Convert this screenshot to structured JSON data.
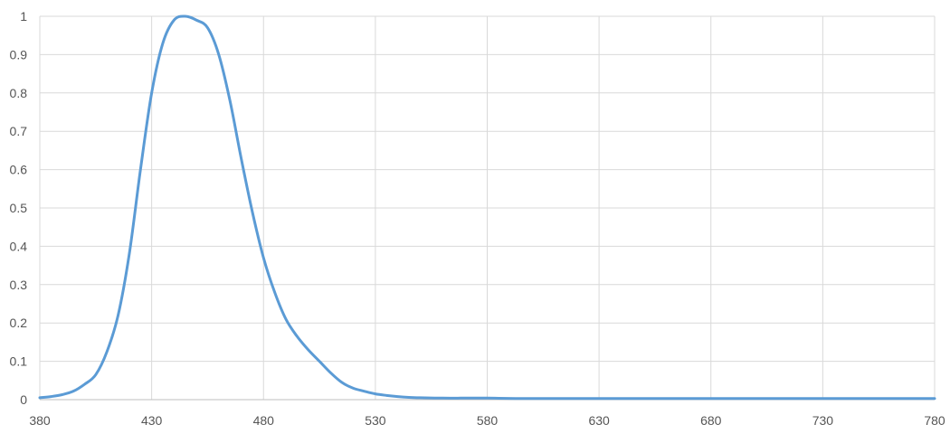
{
  "chart_data": {
    "type": "line",
    "title": "",
    "xlabel": "",
    "ylabel": "",
    "xlim": [
      380,
      780
    ],
    "ylim": [
      0,
      1
    ],
    "grid": true,
    "x_ticks": [
      380,
      430,
      480,
      530,
      580,
      630,
      680,
      730,
      780
    ],
    "y_ticks": [
      0,
      0.1,
      0.2,
      0.3,
      0.4,
      0.5,
      0.6,
      0.7,
      0.8,
      0.9,
      1
    ],
    "x_tick_labels": [
      "380",
      "430",
      "480",
      "530",
      "580",
      "630",
      "680",
      "730",
      "780"
    ],
    "y_tick_labels": [
      "0",
      "0.1",
      "0.2",
      "0.3",
      "0.4",
      "0.5",
      "0.6",
      "0.7",
      "0.8",
      "0.9",
      "1"
    ],
    "series": [
      {
        "color": "#5b9bd5",
        "x": [
          380,
          385,
          390,
          395,
          400,
          405,
          410,
          415,
          420,
          425,
          430,
          435,
          440,
          445,
          450,
          455,
          460,
          465,
          470,
          475,
          480,
          485,
          490,
          495,
          500,
          505,
          510,
          515,
          520,
          525,
          530,
          535,
          540,
          545,
          550,
          560,
          570,
          580,
          600,
          650,
          700,
          750,
          780
        ],
        "y": [
          0.005,
          0.008,
          0.013,
          0.022,
          0.04,
          0.065,
          0.125,
          0.22,
          0.38,
          0.6,
          0.8,
          0.93,
          0.99,
          1.0,
          0.99,
          0.97,
          0.9,
          0.78,
          0.63,
          0.49,
          0.37,
          0.28,
          0.21,
          0.165,
          0.13,
          0.1,
          0.07,
          0.045,
          0.03,
          0.022,
          0.015,
          0.011,
          0.008,
          0.006,
          0.005,
          0.004,
          0.004,
          0.004,
          0.003,
          0.003,
          0.003,
          0.003,
          0.003
        ]
      }
    ]
  }
}
